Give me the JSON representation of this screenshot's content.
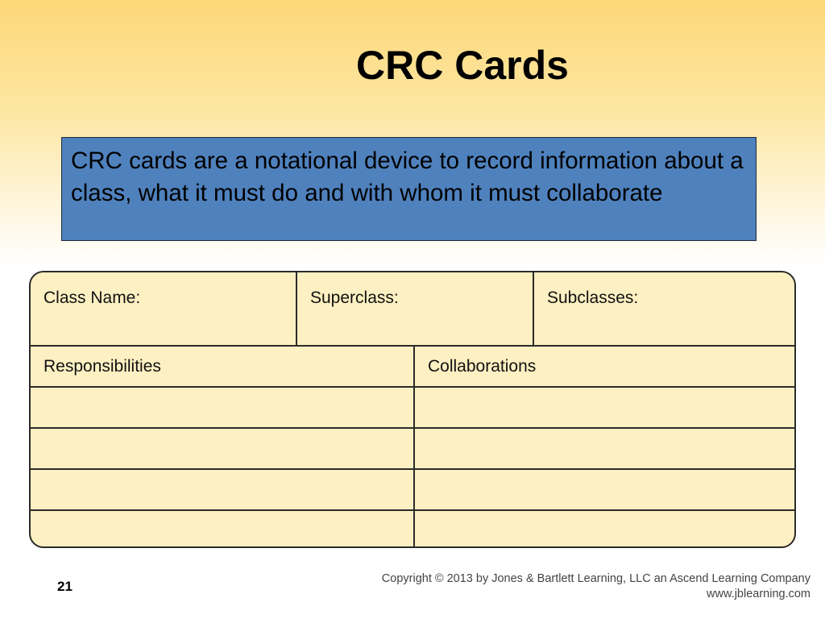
{
  "slide": {
    "title": "CRC Cards",
    "description": "CRC cards are a notational device to record information about a class, what it must do and with whom it must collaborate",
    "page_number": "21",
    "copyright": "Copyright © 2013 by Jones & Bartlett Learning, LLC an Ascend Learning Company",
    "website": "www.jblearning.com"
  },
  "card": {
    "class_name_label": "Class Name:",
    "superclass_label": "Superclass:",
    "subclasses_label": "Subclasses:",
    "responsibilities_label": "Responsibilities",
    "collaborations_label": "Collaborations",
    "empty_rows": 4
  },
  "colors": {
    "card_fill": "#fdf0c2",
    "callout_fill": "#4f81bd",
    "header_gradient_top": "#fdd778"
  }
}
